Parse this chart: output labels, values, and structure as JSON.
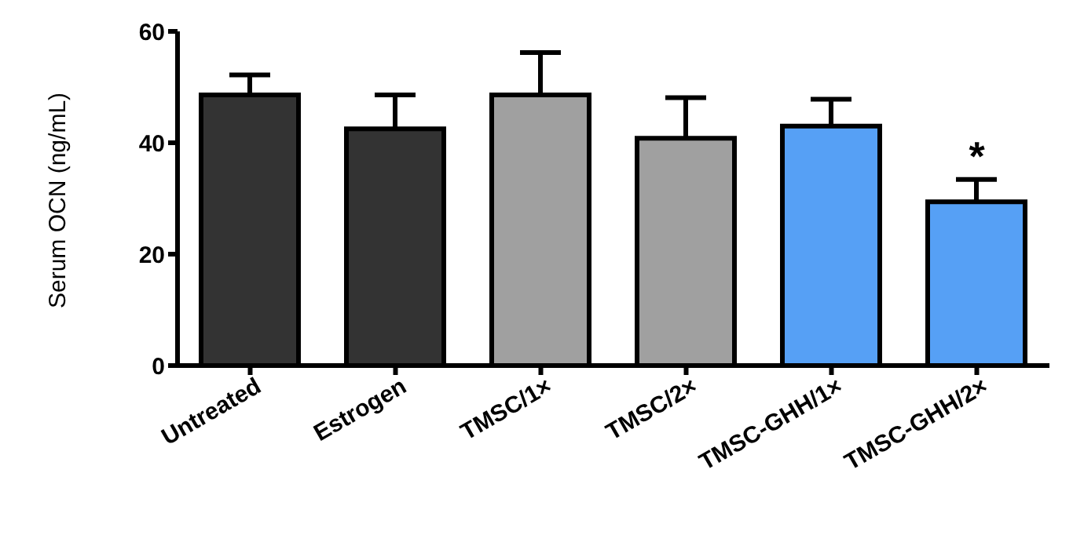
{
  "chart_data": {
    "type": "bar",
    "ylabel": "Serum OCN (ng/mL)",
    "categories": [
      "Untreated",
      "Estrogen",
      "TMSC/1×",
      "TMSC/2×",
      "TMSC-GHH/1×",
      "TMSC-GHH/2×"
    ],
    "values": [
      48.6,
      42.5,
      48.6,
      40.8,
      43,
      29.4
    ],
    "colors": [
      "#333333",
      "#333333",
      "#a0a0a0",
      "#a0a0a0",
      "#56a0f5",
      "#56a0f5"
    ],
    "errors": [
      [
        48.6,
        52.2
      ],
      [
        42.5,
        48.6
      ],
      [
        48.6,
        56.2
      ],
      [
        40.8,
        48.1
      ],
      [
        43,
        47.8
      ],
      [
        29.4,
        33.4
      ]
    ],
    "ylim": [
      0,
      60
    ],
    "yticks": [
      0,
      20,
      40,
      60
    ],
    "grid": false,
    "legend": false,
    "annotations": [
      "*"
    ]
  }
}
